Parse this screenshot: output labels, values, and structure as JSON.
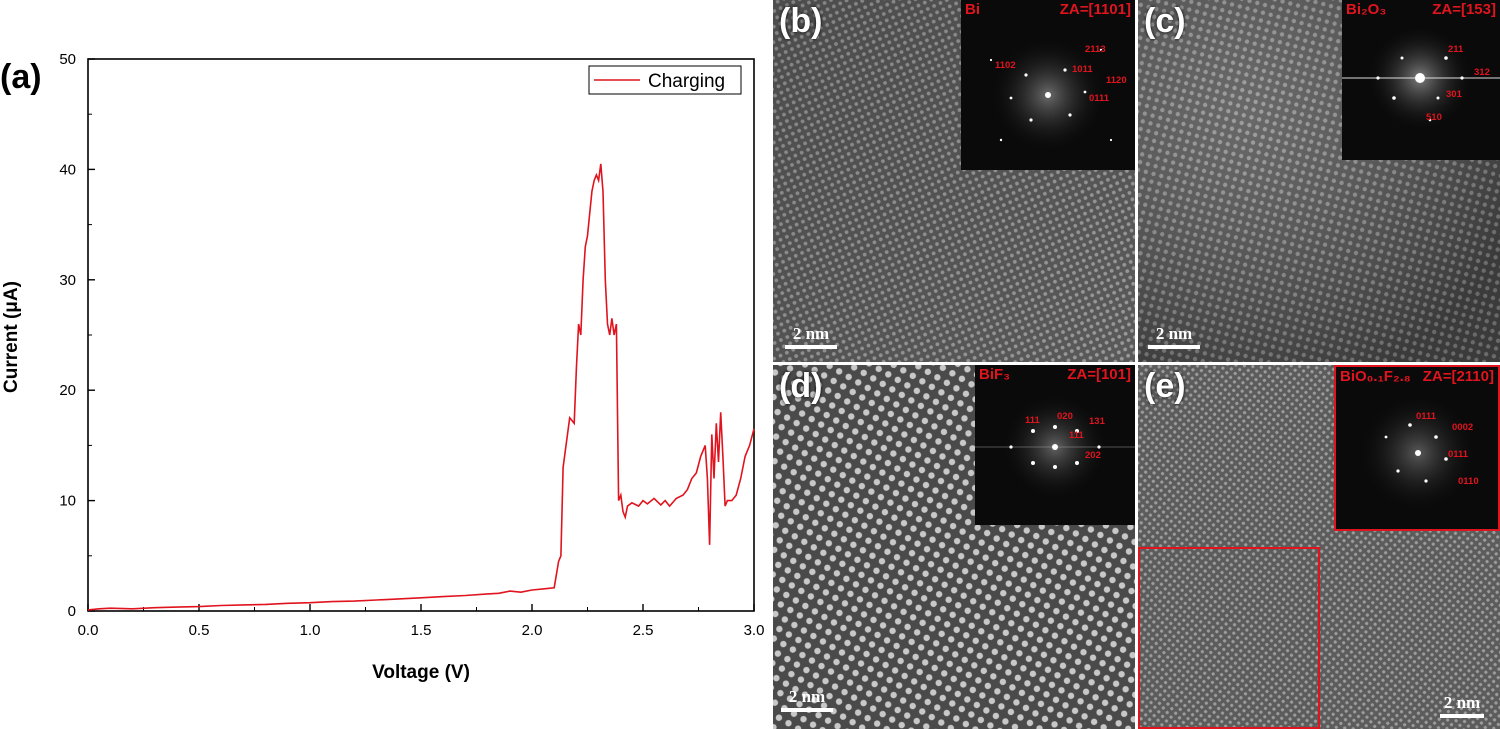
{
  "chart_data": {
    "type": "line",
    "panel_label": "(a)",
    "xlabel": "Voltage (V)",
    "ylabel": "Current (μA)",
    "xlim": [
      0,
      3.0
    ],
    "ylim": [
      0,
      50
    ],
    "xticks": [
      "0.0",
      "0.5",
      "1.0",
      "1.5",
      "2.0",
      "2.5",
      "3.0"
    ],
    "yticks": [
      "0",
      "10",
      "20",
      "30",
      "40",
      "50"
    ],
    "legend": "top-right",
    "series": [
      {
        "name": "Charging",
        "color": "#e0141e",
        "x": [
          0,
          0.05,
          0.1,
          0.2,
          0.3,
          0.4,
          0.5,
          0.6,
          0.7,
          0.8,
          0.9,
          1.0,
          1.1,
          1.2,
          1.3,
          1.4,
          1.5,
          1.6,
          1.7,
          1.8,
          1.85,
          1.9,
          1.95,
          2.0,
          2.05,
          2.1,
          2.12,
          2.13,
          2.14,
          2.15,
          2.17,
          2.19,
          2.2,
          2.21,
          2.22,
          2.23,
          2.24,
          2.25,
          2.26,
          2.27,
          2.28,
          2.29,
          2.3,
          2.31,
          2.32,
          2.33,
          2.34,
          2.35,
          2.36,
          2.37,
          2.38,
          2.39,
          2.4,
          2.41,
          2.42,
          2.43,
          2.45,
          2.48,
          2.5,
          2.52,
          2.55,
          2.58,
          2.6,
          2.62,
          2.65,
          2.68,
          2.7,
          2.72,
          2.74,
          2.76,
          2.78,
          2.79,
          2.8,
          2.81,
          2.82,
          2.83,
          2.84,
          2.85,
          2.86,
          2.87,
          2.88,
          2.9,
          2.92,
          2.94,
          2.96,
          2.98,
          3.0
        ],
        "y": [
          0.1,
          0.2,
          0.25,
          0.2,
          0.3,
          0.35,
          0.4,
          0.5,
          0.55,
          0.6,
          0.7,
          0.75,
          0.85,
          0.9,
          1.0,
          1.1,
          1.2,
          1.3,
          1.4,
          1.55,
          1.6,
          1.8,
          1.7,
          1.9,
          2.0,
          2.1,
          4.5,
          5.0,
          13.0,
          14.5,
          17.5,
          17.0,
          22.0,
          26.0,
          25.0,
          30.0,
          33.0,
          34.0,
          36.0,
          38.0,
          39.0,
          39.5,
          39.0,
          40.5,
          38.0,
          30.0,
          26.0,
          25.0,
          26.5,
          25.0,
          26.0,
          10.0,
          10.5,
          9.0,
          8.5,
          9.5,
          9.8,
          9.5,
          10.0,
          9.7,
          10.2,
          9.6,
          10.0,
          9.5,
          10.2,
          10.5,
          11.0,
          12.0,
          12.5,
          14.0,
          15.0,
          12.0,
          6.0,
          16.0,
          12.0,
          17.0,
          13.5,
          18.0,
          14.0,
          9.5,
          10.0,
          10.0,
          10.5,
          12.0,
          14.0,
          15.0,
          16.5
        ]
      }
    ]
  },
  "panels": {
    "b": {
      "letter": "(b)",
      "phase": "Bi",
      "za": "ZA=[1101]",
      "scale": "2 nm",
      "spots": [
        "2113",
        "1102",
        "1011",
        "1120",
        "0111"
      ]
    },
    "c": {
      "letter": "(c)",
      "phase": "Bi₂O₃",
      "za": "ZA=[153]",
      "scale": "2 nm",
      "spots": [
        "211",
        "312",
        "301",
        "510"
      ]
    },
    "d": {
      "letter": "(d)",
      "phase": "BiF₃",
      "za": "ZA=[101]",
      "scale": "2 nm",
      "spots": [
        "111",
        "020",
        "131",
        "111",
        "202"
      ]
    },
    "e": {
      "letter": "(e)",
      "phase": "BiO₀.₁F₂.₈",
      "za": "ZA=[2110]",
      "scale": "2 nm",
      "spots": [
        "0111",
        "0002",
        "0111",
        "0110"
      ]
    }
  }
}
